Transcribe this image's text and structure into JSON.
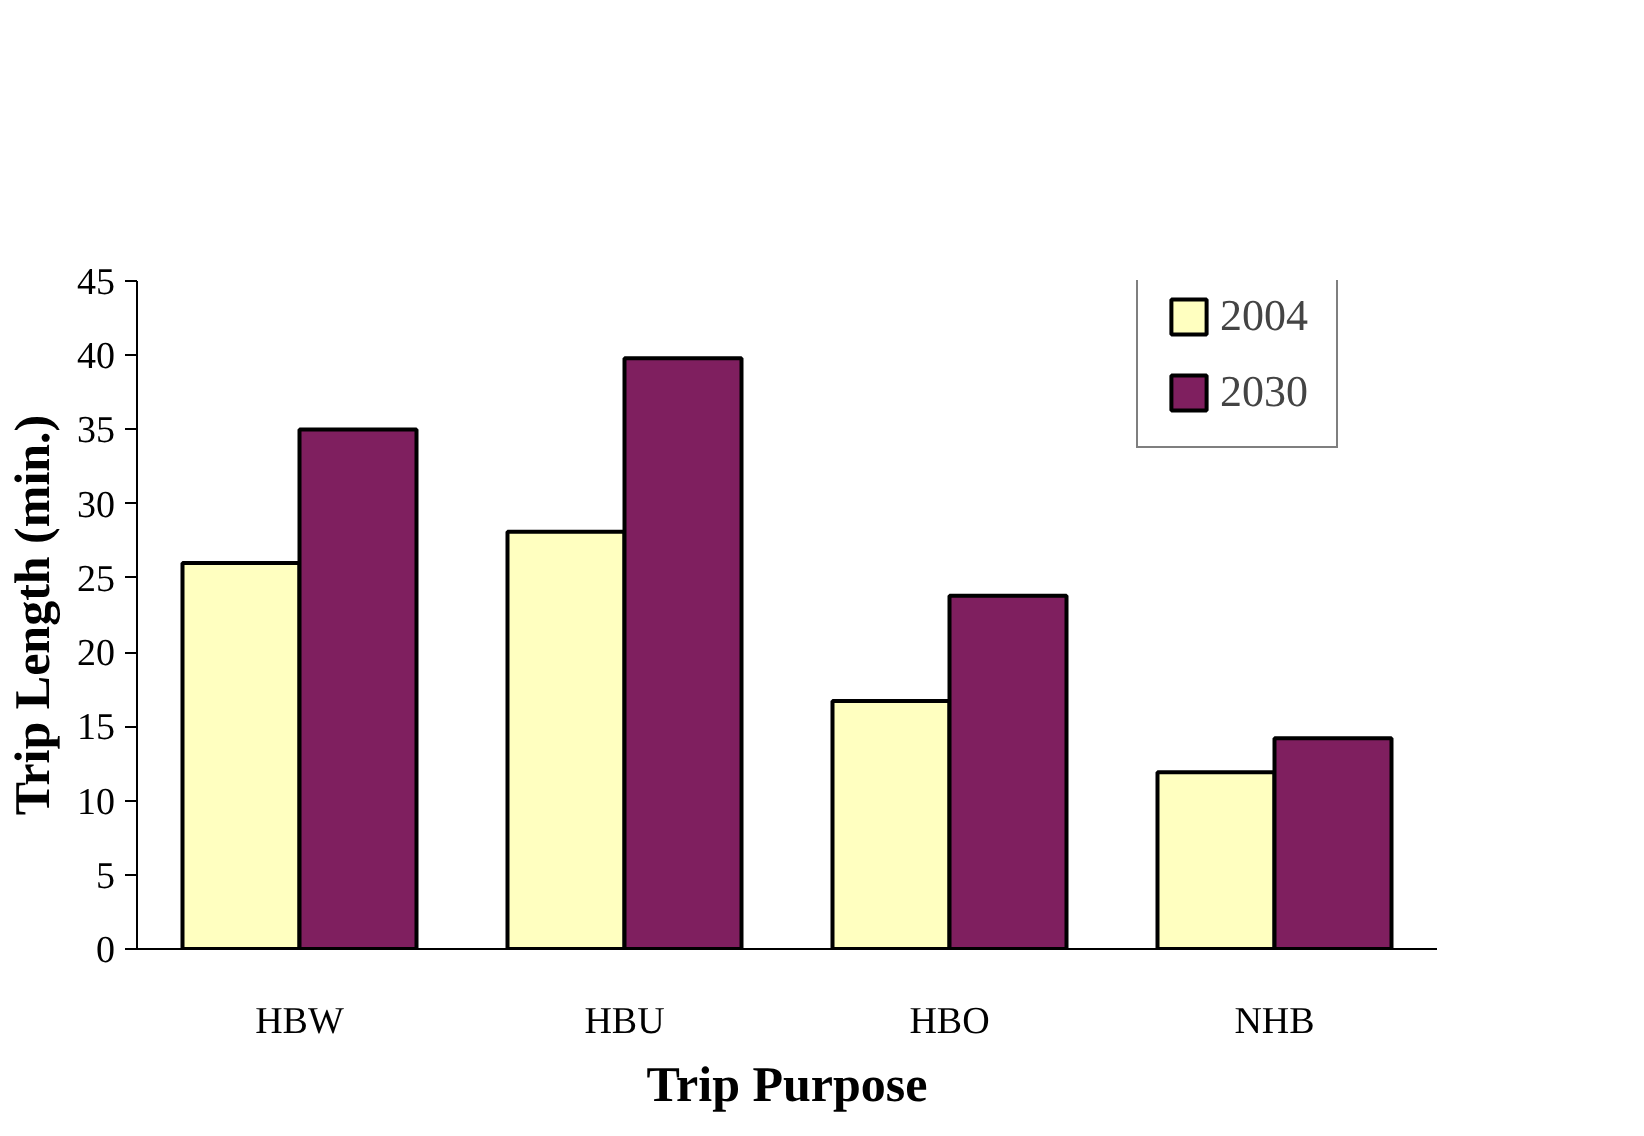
{
  "chart_data": {
    "type": "bar",
    "xlabel": "Trip Purpose",
    "ylabel": "Trip Length (min.)",
    "categories": [
      "HBW",
      "HBU",
      "HBO",
      "NHB"
    ],
    "series": [
      {
        "name": "2004",
        "color": "#ffffc0",
        "values": [
          26,
          28.1,
          16.7,
          11.9
        ]
      },
      {
        "name": "2030",
        "color": "#7f1f5f",
        "values": [
          35,
          39.8,
          23.8,
          14.2
        ]
      }
    ],
    "ylim": [
      0,
      45
    ],
    "yticks": [
      0,
      5,
      10,
      15,
      20,
      25,
      30,
      35,
      40,
      45
    ],
    "grid": false,
    "legend": "top right"
  }
}
